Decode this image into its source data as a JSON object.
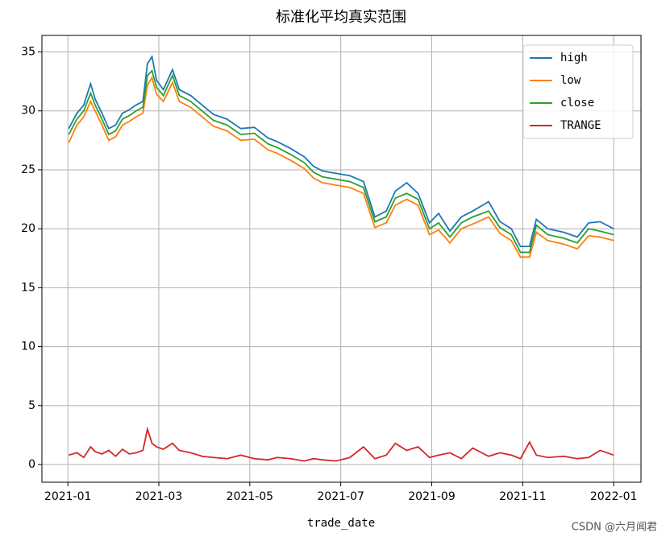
{
  "chart_data": {
    "type": "line",
    "title": "标准化平均真实范围",
    "x_label": "trade_date",
    "x": [
      0.02,
      0.2,
      0.35,
      0.5,
      0.6,
      0.75,
      0.9,
      1.05,
      1.2,
      1.35,
      1.5,
      1.65,
      1.75,
      1.85,
      1.95,
      2.1,
      2.3,
      2.45,
      2.7,
      2.95,
      3.2,
      3.5,
      3.8,
      4.1,
      4.4,
      4.6,
      4.9,
      5.2,
      5.4,
      5.6,
      5.9,
      6.2,
      6.5,
      6.75,
      7.0,
      7.2,
      7.45,
      7.7,
      7.95,
      8.15,
      8.4,
      8.65,
      8.9,
      9.25,
      9.5,
      9.75,
      9.95,
      10.15,
      10.3,
      10.55,
      10.9,
      11.2,
      11.45,
      11.7,
      12.0
    ],
    "series": [
      {
        "name": "high",
        "color": "#1f77b4",
        "values": [
          28.5,
          29.8,
          30.5,
          32.3,
          31,
          29.8,
          28.5,
          28.8,
          29.8,
          30.1,
          30.5,
          30.8,
          34,
          34.6,
          32.6,
          31.8,
          33.5,
          31.8,
          31.3,
          30.5,
          29.7,
          29.3,
          28.5,
          28.6,
          27.7,
          27.4,
          26.8,
          26.1,
          25.3,
          24.9,
          24.7,
          24.5,
          24,
          21,
          21.5,
          23.2,
          23.9,
          23,
          20.5,
          21.3,
          19.8,
          21,
          21.5,
          22.3,
          20.6,
          20,
          18.5,
          18.5,
          20.8,
          20,
          19.7,
          19.3,
          20.5,
          20.6,
          20
        ]
      },
      {
        "name": "low",
        "color": "#ff7f0e",
        "values": [
          27.3,
          28.8,
          29.5,
          30.8,
          30,
          28.8,
          27.5,
          27.8,
          28.8,
          29.1,
          29.5,
          29.8,
          32.2,
          32.8,
          31.4,
          30.8,
          32.4,
          30.8,
          30.3,
          29.5,
          28.7,
          28.3,
          27.5,
          27.6,
          26.7,
          26.4,
          25.8,
          25.1,
          24.3,
          23.9,
          23.7,
          23.5,
          23,
          20.1,
          20.5,
          22,
          22.5,
          22,
          19.5,
          19.9,
          18.8,
          20,
          20.4,
          21,
          19.6,
          19,
          17.6,
          17.6,
          19.7,
          19,
          18.7,
          18.3,
          19.4,
          19.3,
          19
        ]
      },
      {
        "name": "close",
        "color": "#2ca02c",
        "values": [
          28,
          29.3,
          30,
          31.5,
          30.5,
          29.3,
          28,
          28.3,
          29.3,
          29.6,
          30,
          30.3,
          33,
          33.4,
          32,
          31.3,
          33,
          31.3,
          30.8,
          30,
          29.2,
          28.8,
          28,
          28.1,
          27.2,
          26.9,
          26.3,
          25.6,
          24.8,
          24.4,
          24.2,
          24,
          23.5,
          20.6,
          21,
          22.6,
          23,
          22.5,
          20,
          20.5,
          19.3,
          20.5,
          21,
          21.5,
          20.1,
          19.5,
          18,
          18,
          20.3,
          19.5,
          19.2,
          18.8,
          20,
          19.8,
          19.5
        ]
      },
      {
        "name": "TRANGE",
        "color": "#d62728",
        "values": [
          0.8,
          1,
          0.6,
          1.5,
          1.1,
          0.9,
          1.2,
          0.7,
          1.3,
          0.9,
          1,
          1.2,
          3,
          1.8,
          1.5,
          1.3,
          1.8,
          1.2,
          1,
          0.7,
          0.6,
          0.5,
          0.8,
          0.5,
          0.4,
          0.6,
          0.5,
          0.3,
          0.5,
          0.4,
          0.3,
          0.6,
          1.5,
          0.5,
          0.8,
          1.8,
          1.2,
          1.5,
          0.6,
          0.8,
          1,
          0.5,
          1.4,
          0.7,
          1,
          0.8,
          0.5,
          1.9,
          0.8,
          0.6,
          0.7,
          0.5,
          0.6,
          1.2,
          0.8
        ]
      }
    ],
    "xlim": [
      -0.57,
      12.6
    ],
    "xticks": [
      {
        "value": 0,
        "label": "2021-01"
      },
      {
        "value": 2,
        "label": "2021-03"
      },
      {
        "value": 4,
        "label": "2021-05"
      },
      {
        "value": 6,
        "label": "2021-07"
      },
      {
        "value": 8,
        "label": "2021-09"
      },
      {
        "value": 10,
        "label": "2021-11"
      },
      {
        "value": 12,
        "label": "2022-01"
      }
    ],
    "ylim": [
      -1.5,
      36.4
    ],
    "yticks": [
      0,
      5,
      10,
      15,
      20,
      25,
      30,
      35
    ],
    "grid": true,
    "legend": "upper right"
  },
  "watermark": "CSDN @六月闻君"
}
